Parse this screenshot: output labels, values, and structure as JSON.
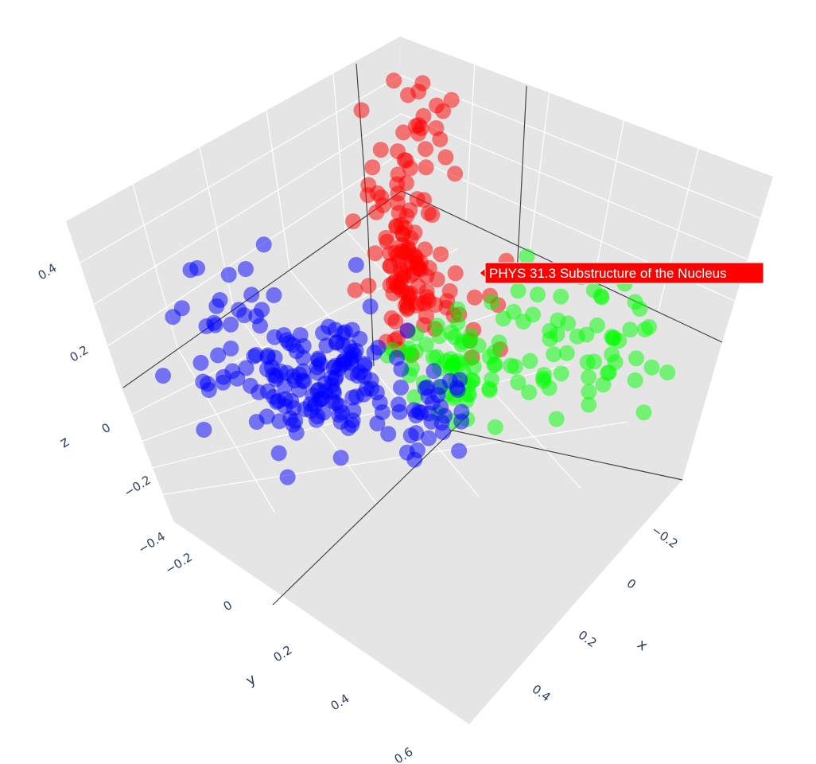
{
  "chart_data": {
    "type": "scatter3d",
    "title": "",
    "axes": {
      "x": {
        "label": "x",
        "ticks": [
          "−0.2",
          "0",
          "0.2",
          "0.4"
        ]
      },
      "y": {
        "label": "y",
        "ticks": [
          "−0.4",
          "−0.2",
          "0",
          "0.2",
          "0.4",
          "0.6"
        ]
      },
      "z": {
        "label": "z",
        "ticks": [
          "−0.2",
          "0",
          "0.2",
          "0.4"
        ]
      }
    },
    "background": {
      "pane_color": "#e5e5e5",
      "grid_color": "#ffffff",
      "axis_line_color": "#444444"
    },
    "marker_opacity": 0.5,
    "series": [
      {
        "color": "#ff0000",
        "count": 140
      },
      {
        "color": "#00ff00",
        "count": 120
      },
      {
        "color": "#0000ff",
        "count": 200
      }
    ],
    "hover_label": {
      "text": "PHYS 31.3 Substructure of the Nucleus",
      "background": "#ff0000",
      "text_color": "#ffffff"
    }
  }
}
